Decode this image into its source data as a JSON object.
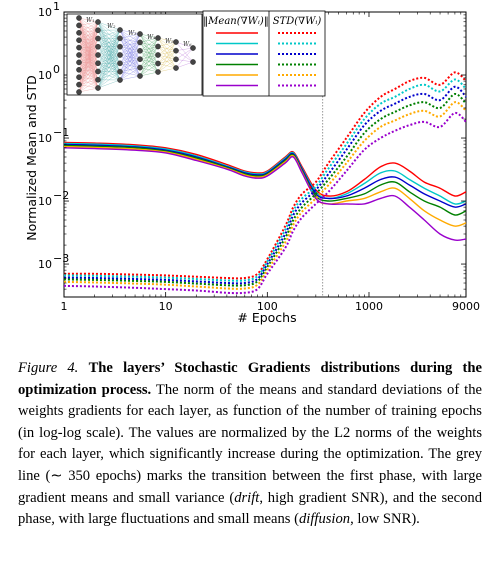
{
  "chart_data": {
    "type": "line",
    "xlabel": "# Epochs",
    "ylabel": "Normalized Mean and STD",
    "xscale": "log",
    "yscale": "log",
    "xlim": [
      1,
      9000
    ],
    "ylim": [
      0.0003,
      10
    ],
    "x_ticks": [
      "1",
      "10",
      "100",
      "1000",
      "9000"
    ],
    "y_ticks": [
      {
        "base": "10",
        "exp": "1"
      },
      {
        "base": "10",
        "exp": "0"
      },
      {
        "base": "10",
        "exp": "−1"
      },
      {
        "base": "10",
        "exp": "−2"
      },
      {
        "base": "10",
        "exp": "−3"
      }
    ],
    "vline_x": 350,
    "legend": {
      "position": "top",
      "mean_header": "‖Mean(∇Wᵢ)‖",
      "std_header": "STD(∇Wᵢ)"
    },
    "inset": {
      "layer_labels": [
        "W₁",
        "W₂",
        "W₃",
        "W₄",
        "W₅",
        "W₆"
      ]
    },
    "colors": [
      "#ff0000",
      "#00c8c8",
      "#0000cc",
      "#008000",
      "#ffaa00",
      "#9900cc"
    ],
    "x": [
      1,
      2,
      5,
      10,
      20,
      40,
      60,
      80,
      100,
      150,
      180,
      220,
      300,
      400,
      600,
      900,
      1300,
      1800,
      2500,
      3500,
      5000,
      7000,
      9000
    ],
    "series": [
      {
        "kind": "mean",
        "values": [
          0.085,
          0.083,
          0.078,
          0.07,
          0.055,
          0.038,
          0.03,
          0.028,
          0.03,
          0.05,
          0.06,
          0.035,
          0.015,
          0.012,
          0.014,
          0.022,
          0.035,
          0.04,
          0.03,
          0.02,
          0.016,
          0.012,
          0.014
        ]
      },
      {
        "kind": "mean",
        "values": [
          0.082,
          0.08,
          0.075,
          0.067,
          0.052,
          0.036,
          0.029,
          0.027,
          0.029,
          0.048,
          0.058,
          0.033,
          0.014,
          0.011,
          0.013,
          0.019,
          0.028,
          0.03,
          0.022,
          0.016,
          0.012,
          0.009,
          0.01
        ]
      },
      {
        "kind": "mean",
        "values": [
          0.079,
          0.077,
          0.072,
          0.064,
          0.05,
          0.035,
          0.028,
          0.026,
          0.028,
          0.046,
          0.056,
          0.032,
          0.013,
          0.011,
          0.012,
          0.016,
          0.022,
          0.024,
          0.018,
          0.013,
          0.01,
          0.008,
          0.009
        ]
      },
      {
        "kind": "mean",
        "values": [
          0.076,
          0.074,
          0.07,
          0.062,
          0.048,
          0.034,
          0.027,
          0.025,
          0.027,
          0.044,
          0.054,
          0.03,
          0.012,
          0.01,
          0.011,
          0.013,
          0.018,
          0.02,
          0.014,
          0.01,
          0.008,
          0.006,
          0.007
        ]
      },
      {
        "kind": "mean",
        "values": [
          0.073,
          0.071,
          0.067,
          0.06,
          0.046,
          0.033,
          0.026,
          0.024,
          0.026,
          0.042,
          0.052,
          0.029,
          0.011,
          0.009,
          0.01,
          0.011,
          0.014,
          0.016,
          0.011,
          0.007,
          0.005,
          0.004,
          0.0045
        ]
      },
      {
        "kind": "mean",
        "values": [
          0.07,
          0.068,
          0.064,
          0.058,
          0.044,
          0.032,
          0.025,
          0.023,
          0.025,
          0.04,
          0.05,
          0.028,
          0.011,
          0.009,
          0.009,
          0.009,
          0.011,
          0.012,
          0.008,
          0.005,
          0.003,
          0.0024,
          0.0025
        ]
      },
      {
        "kind": "std",
        "values": [
          0.0007,
          0.0007,
          0.00068,
          0.00066,
          0.00063,
          0.0006,
          0.0006,
          0.0007,
          0.0012,
          0.004,
          0.008,
          0.013,
          0.02,
          0.04,
          0.1,
          0.25,
          0.45,
          0.6,
          0.8,
          0.9,
          0.7,
          1.1,
          0.8
        ]
      },
      {
        "kind": "std",
        "values": [
          0.00066,
          0.00065,
          0.00063,
          0.00061,
          0.00058,
          0.00055,
          0.00055,
          0.00064,
          0.0011,
          0.0035,
          0.007,
          0.011,
          0.017,
          0.033,
          0.08,
          0.2,
          0.35,
          0.45,
          0.6,
          0.7,
          0.55,
          0.85,
          0.6
        ]
      },
      {
        "kind": "std",
        "values": [
          0.00061,
          0.0006,
          0.00058,
          0.00056,
          0.00053,
          0.0005,
          0.0005,
          0.00058,
          0.001,
          0.003,
          0.006,
          0.0095,
          0.015,
          0.027,
          0.065,
          0.16,
          0.27,
          0.35,
          0.45,
          0.5,
          0.4,
          0.65,
          0.45
        ]
      },
      {
        "kind": "std",
        "values": [
          0.00057,
          0.00056,
          0.00054,
          0.00052,
          0.00049,
          0.00046,
          0.00046,
          0.00053,
          0.0009,
          0.0026,
          0.005,
          0.008,
          0.013,
          0.022,
          0.05,
          0.12,
          0.2,
          0.26,
          0.33,
          0.37,
          0.3,
          0.5,
          0.35
        ]
      },
      {
        "kind": "std",
        "values": [
          0.00052,
          0.00051,
          0.00049,
          0.00047,
          0.00044,
          0.00041,
          0.00041,
          0.00047,
          0.0008,
          0.0022,
          0.0042,
          0.0068,
          0.011,
          0.018,
          0.04,
          0.09,
          0.15,
          0.19,
          0.24,
          0.27,
          0.22,
          0.37,
          0.27
        ]
      },
      {
        "kind": "std",
        "values": [
          0.00045,
          0.00044,
          0.00042,
          0.0004,
          0.00038,
          0.00035,
          0.00035,
          0.0004,
          0.0007,
          0.0018,
          0.0034,
          0.0055,
          0.009,
          0.014,
          0.03,
          0.065,
          0.1,
          0.13,
          0.16,
          0.18,
          0.15,
          0.25,
          0.18
        ]
      }
    ]
  },
  "caption": {
    "figure_label": "Figure 4.",
    "title": "The layers’ Stochastic Gradients distributions during the optimization process.",
    "body_1": " The norm of the means and standard deviations of the weights gradients for each layer, as function of the number of training epochs (in log-log scale). The values are normalized by the L2 norms of the weights for each layer, which significantly increase during the optimization. The grey line (∼ 350 epochs) marks the transition between the first phase, with large gradient means and small variance (",
    "drift": "drift",
    "body_2": ", high gradient SNR), and the second phase, with large fluctuations and small means (",
    "diffusion": "diffusion",
    "body_3": ", low SNR)."
  }
}
